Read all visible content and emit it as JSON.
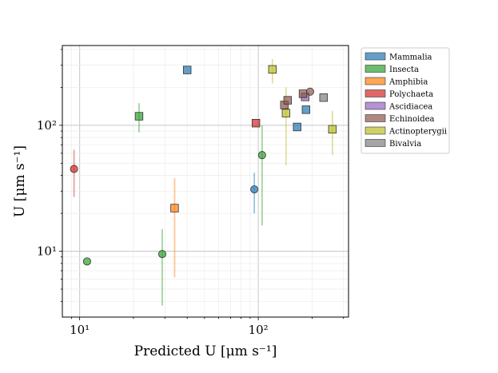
{
  "chart_data": {
    "type": "scatter",
    "title": "",
    "xlabel": "Predicted U [μm s⁻¹]",
    "ylabel": "U [μm s⁻¹]",
    "xscale": "log",
    "yscale": "log",
    "xlim": [
      8.0,
      320
    ],
    "ylim": [
      3.0,
      430
    ],
    "x_tick_labels": [
      {
        "value": 10,
        "label": "10¹"
      },
      {
        "value": 100,
        "label": "10²"
      }
    ],
    "y_tick_labels": [
      {
        "value": 10,
        "label": "10¹"
      },
      {
        "value": 100,
        "label": "10²"
      }
    ],
    "grid": true,
    "legend_position": "outside-right",
    "marker_kinds": [
      "square",
      "circle"
    ],
    "series": [
      {
        "name": "Mammalia",
        "color": "#1f77b4",
        "points": [
          {
            "x": 40,
            "y": 275,
            "marker": "square"
          },
          {
            "x": 165,
            "y": 97,
            "marker": "square"
          },
          {
            "x": 185,
            "y": 133,
            "marker": "square"
          },
          {
            "x": 95,
            "y": 31,
            "marker": "circle",
            "err": [
              20,
              42
            ]
          }
        ]
      },
      {
        "name": "Insecta",
        "color": "#2ca02c",
        "points": [
          {
            "x": 21.5,
            "y": 118,
            "marker": "square",
            "err": [
              88,
              150
            ]
          },
          {
            "x": 11,
            "y": 8.3,
            "marker": "circle"
          },
          {
            "x": 29,
            "y": 9.5,
            "marker": "circle",
            "err": [
              3.7,
              15
            ]
          },
          {
            "x": 105,
            "y": 58,
            "marker": "circle",
            "err": [
              16,
              100
            ]
          }
        ]
      },
      {
        "name": "Amphibia",
        "color": "#ff7f0e",
        "points": [
          {
            "x": 34,
            "y": 22,
            "marker": "square",
            "err": [
              6.2,
              38
            ]
          }
        ]
      },
      {
        "name": "Polychaeta",
        "color": "#d62728",
        "points": [
          {
            "x": 97,
            "y": 104,
            "marker": "square"
          },
          {
            "x": 9.3,
            "y": 45,
            "marker": "circle",
            "err": [
              27,
              64
            ]
          }
        ]
      },
      {
        "name": "Ascidiacea",
        "color": "#9467bd",
        "points": [
          {
            "x": 183,
            "y": 168,
            "marker": "square"
          }
        ]
      },
      {
        "name": "Echinoidea",
        "color": "#8c564b",
        "points": [
          {
            "x": 140,
            "y": 145,
            "marker": "square"
          },
          {
            "x": 146,
            "y": 158,
            "marker": "square"
          },
          {
            "x": 178,
            "y": 178,
            "marker": "square"
          },
          {
            "x": 195,
            "y": 185,
            "marker": "circle"
          }
        ]
      },
      {
        "name": "Actinopterygii",
        "color": "#bcbd22",
        "points": [
          {
            "x": 120,
            "y": 278,
            "marker": "square",
            "err": [
              215,
              335
            ]
          },
          {
            "x": 143,
            "y": 125,
            "marker": "square",
            "err": [
              48,
              200
            ]
          },
          {
            "x": 260,
            "y": 93,
            "marker": "square",
            "err": [
              58,
              130
            ]
          }
        ]
      },
      {
        "name": "Bivalvia",
        "color": "#7f7f7f",
        "points": [
          {
            "x": 232,
            "y": 166,
            "marker": "square"
          }
        ]
      }
    ]
  }
}
